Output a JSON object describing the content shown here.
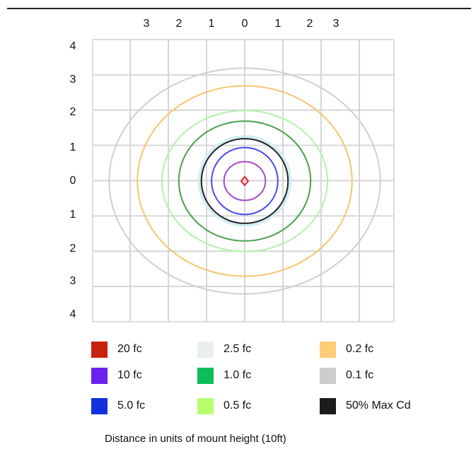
{
  "chart_data": {
    "type": "isofootcandle contour",
    "x_ticks": [
      "3",
      "2",
      "1",
      "0",
      "1",
      "2",
      "3"
    ],
    "y_ticks": [
      "4",
      "3",
      "2",
      "1",
      "0",
      "1",
      "2",
      "3",
      "4"
    ],
    "xlim": [
      -4,
      4
    ],
    "ylim": [
      -4,
      4
    ],
    "grid": true,
    "caption": "Distance in units of mount height (10ft)",
    "legend_position": "bottom",
    "contours": [
      {
        "label": "0.1 fc",
        "color": "#cfcfcf",
        "rx": 3.6,
        "ry": 3.2
      },
      {
        "label": "0.2 fc",
        "color": "#f6c66e",
        "rx": 2.85,
        "ry": 2.7
      },
      {
        "label": "0.5 fc",
        "color": "#b5f0ad",
        "rx": 2.2,
        "ry": 2.0
      },
      {
        "label": "1.0 fc",
        "color": "#4aa24e",
        "rx": 1.75,
        "ry": 1.7
      },
      {
        "label": "2.5 fc",
        "color": "#d4edf2",
        "rx": 1.2,
        "ry": 1.25
      },
      {
        "label": "50% Max Cd",
        "color": "#222222",
        "rx": 1.15,
        "ry": 1.2
      },
      {
        "label": "5.0 fc",
        "color": "#4a4aef",
        "rx": 0.88,
        "ry": 0.95
      },
      {
        "label": "10 fc",
        "color": "#a54bc6",
        "rx": 0.55,
        "ry": 0.55
      },
      {
        "label": "20 fc",
        "color": "#e8202a",
        "rx": 0.08,
        "ry": 0.08
      }
    ],
    "legend": [
      {
        "label": "20 fc",
        "color": "#c8200e"
      },
      {
        "label": "2.5 fc",
        "color": "#eaf0f2"
      },
      {
        "label": "0.2 fc",
        "color": "#ffcc77"
      },
      {
        "label": "10 fc",
        "color": "#6a22ee"
      },
      {
        "label": "1.0 fc",
        "color": "#0dbd5a"
      },
      {
        "label": "0.1 fc",
        "color": "#cdcdcd"
      },
      {
        "label": "5.0 fc",
        "color": "#1230de"
      },
      {
        "label": "0.5 fc",
        "color": "#b8ff6e"
      },
      {
        "label": "50% Max Cd",
        "color": "#1c1c1c"
      }
    ]
  }
}
